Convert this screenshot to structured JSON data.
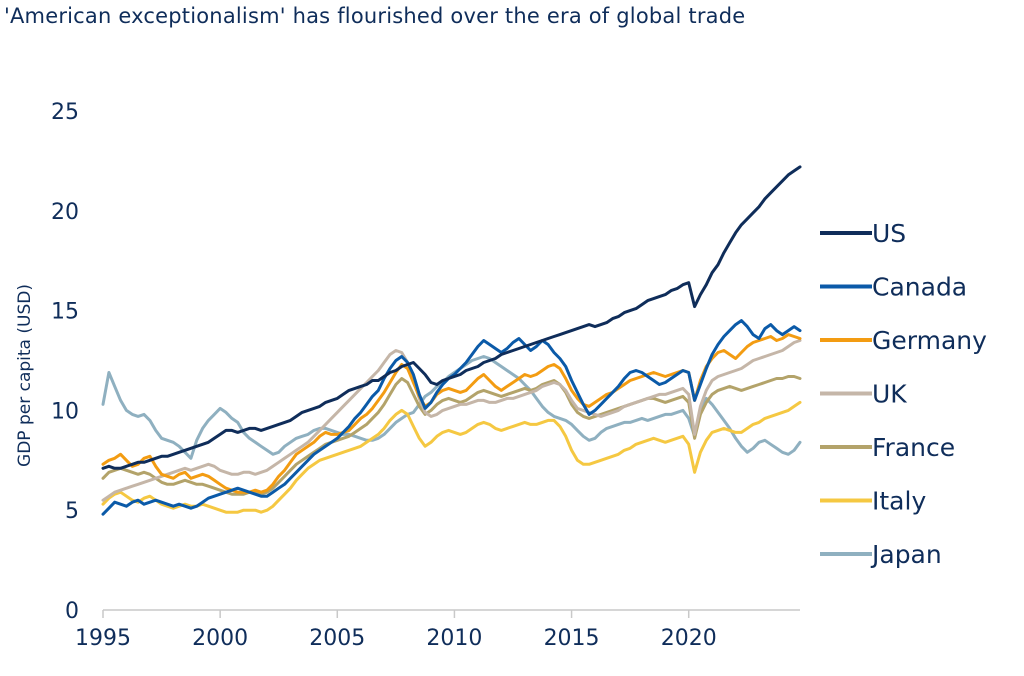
{
  "chart_data": {
    "type": "line",
    "title": "'American exceptionalism' has flourished over the era of global trade",
    "xlabel": "",
    "ylabel": "GDP per capita (USD)",
    "xlim": [
      1995,
      2024.75
    ],
    "ylim": [
      0,
      25
    ],
    "x_ticks": [
      1995,
      2000,
      2005,
      2010,
      2015,
      2020
    ],
    "y_ticks": [
      0,
      5,
      10,
      15,
      20,
      25
    ],
    "legend_position": "right",
    "x": [
      1995.0,
      1995.25,
      1995.5,
      1995.75,
      1996.0,
      1996.25,
      1996.5,
      1996.75,
      1997.0,
      1997.25,
      1997.5,
      1997.75,
      1998.0,
      1998.25,
      1998.5,
      1998.75,
      1999.0,
      1999.25,
      1999.5,
      1999.75,
      2000.0,
      2000.25,
      2000.5,
      2000.75,
      2001.0,
      2001.25,
      2001.5,
      2001.75,
      2002.0,
      2002.25,
      2002.5,
      2002.75,
      2003.0,
      2003.25,
      2003.5,
      2003.75,
      2004.0,
      2004.25,
      2004.5,
      2004.75,
      2005.0,
      2005.25,
      2005.5,
      2005.75,
      2006.0,
      2006.25,
      2006.5,
      2006.75,
      2007.0,
      2007.25,
      2007.5,
      2007.75,
      2008.0,
      2008.25,
      2008.5,
      2008.75,
      2009.0,
      2009.25,
      2009.5,
      2009.75,
      2010.0,
      2010.25,
      2010.5,
      2010.75,
      2011.0,
      2011.25,
      2011.5,
      2011.75,
      2012.0,
      2012.25,
      2012.5,
      2012.75,
      2013.0,
      2013.25,
      2013.5,
      2013.75,
      2014.0,
      2014.25,
      2014.5,
      2014.75,
      2015.0,
      2015.25,
      2015.5,
      2015.75,
      2016.0,
      2016.25,
      2016.5,
      2016.75,
      2017.0,
      2017.25,
      2017.5,
      2017.75,
      2018.0,
      2018.25,
      2018.5,
      2018.75,
      2019.0,
      2019.25,
      2019.5,
      2019.75,
      2020.0,
      2020.25,
      2020.5,
      2020.75,
      2021.0,
      2021.25,
      2021.5,
      2021.75,
      2022.0,
      2022.25,
      2022.5,
      2022.75,
      2023.0,
      2023.25,
      2023.5,
      2023.75,
      2024.0,
      2024.25,
      2024.5,
      2024.75
    ],
    "series": [
      {
        "name": "US",
        "color": "#0f2d5a",
        "values": [
          7.1,
          7.2,
          7.1,
          7.1,
          7.2,
          7.3,
          7.4,
          7.4,
          7.5,
          7.6,
          7.7,
          7.7,
          7.8,
          7.9,
          8.0,
          8.1,
          8.2,
          8.3,
          8.4,
          8.6,
          8.8,
          9.0,
          9.0,
          8.9,
          9.0,
          9.1,
          9.1,
          9.0,
          9.1,
          9.2,
          9.3,
          9.4,
          9.5,
          9.7,
          9.9,
          10.0,
          10.1,
          10.2,
          10.4,
          10.5,
          10.6,
          10.8,
          11.0,
          11.1,
          11.2,
          11.3,
          11.5,
          11.5,
          11.7,
          11.9,
          12.0,
          12.2,
          12.3,
          12.4,
          12.1,
          11.8,
          11.4,
          11.3,
          11.5,
          11.6,
          11.7,
          11.8,
          12.0,
          12.1,
          12.2,
          12.4,
          12.5,
          12.6,
          12.8,
          12.9,
          13.0,
          13.1,
          13.2,
          13.3,
          13.4,
          13.5,
          13.6,
          13.7,
          13.8,
          13.9,
          14.0,
          14.1,
          14.2,
          14.3,
          14.2,
          14.3,
          14.4,
          14.6,
          14.7,
          14.9,
          15.0,
          15.1,
          15.3,
          15.5,
          15.6,
          15.7,
          15.8,
          16.0,
          16.1,
          16.3,
          16.4,
          15.2,
          15.8,
          16.3,
          16.9,
          17.3,
          17.9,
          18.4,
          18.9,
          19.3,
          19.6,
          19.9,
          20.2,
          20.6,
          20.9,
          21.2,
          21.5,
          21.8,
          22.0,
          22.2
        ]
      },
      {
        "name": "Canada",
        "color": "#0b5aa8",
        "values": [
          4.8,
          5.1,
          5.4,
          5.3,
          5.2,
          5.4,
          5.5,
          5.3,
          5.4,
          5.5,
          5.4,
          5.3,
          5.2,
          5.3,
          5.2,
          5.1,
          5.2,
          5.4,
          5.6,
          5.7,
          5.8,
          5.9,
          6.0,
          6.1,
          6.0,
          5.9,
          5.8,
          5.7,
          5.7,
          5.9,
          6.1,
          6.3,
          6.6,
          6.9,
          7.2,
          7.5,
          7.8,
          8.0,
          8.2,
          8.4,
          8.6,
          8.9,
          9.2,
          9.6,
          9.9,
          10.3,
          10.7,
          11.0,
          11.6,
          12.1,
          12.5,
          12.7,
          12.4,
          11.8,
          10.8,
          10.1,
          10.4,
          10.9,
          11.3,
          11.6,
          11.8,
          12.1,
          12.4,
          12.8,
          13.2,
          13.5,
          13.3,
          13.1,
          12.9,
          13.1,
          13.4,
          13.6,
          13.3,
          13.0,
          13.2,
          13.5,
          13.3,
          12.9,
          12.6,
          12.2,
          11.5,
          10.9,
          10.3,
          9.8,
          10.0,
          10.3,
          10.6,
          10.9,
          11.2,
          11.6,
          11.9,
          12.0,
          11.9,
          11.7,
          11.5,
          11.3,
          11.4,
          11.6,
          11.8,
          12.0,
          11.9,
          10.5,
          11.3,
          12.1,
          12.8,
          13.3,
          13.7,
          14.0,
          14.3,
          14.5,
          14.2,
          13.8,
          13.6,
          14.1,
          14.3,
          14.0,
          13.8,
          14.0,
          14.2,
          14.0
        ]
      },
      {
        "name": "Germany",
        "color": "#f39c12",
        "values": [
          7.3,
          7.5,
          7.6,
          7.8,
          7.5,
          7.2,
          7.3,
          7.6,
          7.7,
          7.2,
          6.8,
          6.7,
          6.6,
          6.8,
          6.9,
          6.6,
          6.7,
          6.8,
          6.7,
          6.5,
          6.3,
          6.1,
          6.0,
          5.9,
          5.9,
          5.9,
          6.0,
          5.9,
          6.0,
          6.3,
          6.7,
          7.0,
          7.4,
          7.8,
          8.0,
          8.2,
          8.4,
          8.7,
          8.9,
          8.8,
          8.8,
          8.9,
          9.0,
          9.3,
          9.6,
          9.8,
          10.1,
          10.5,
          10.9,
          11.4,
          11.9,
          12.3,
          12.1,
          11.4,
          10.7,
          10.2,
          10.4,
          10.8,
          11.0,
          11.1,
          11.0,
          10.9,
          11.0,
          11.3,
          11.6,
          11.8,
          11.5,
          11.2,
          11.0,
          11.2,
          11.4,
          11.6,
          11.8,
          11.7,
          11.8,
          12.0,
          12.2,
          12.3,
          12.1,
          11.6,
          11.0,
          10.6,
          10.3,
          10.2,
          10.4,
          10.6,
          10.8,
          10.9,
          11.1,
          11.3,
          11.5,
          11.6,
          11.7,
          11.8,
          11.9,
          11.8,
          11.7,
          11.8,
          11.9,
          12.0,
          11.9,
          10.5,
          11.5,
          12.2,
          12.6,
          12.9,
          13.0,
          12.8,
          12.6,
          12.9,
          13.2,
          13.4,
          13.5,
          13.6,
          13.7,
          13.5,
          13.6,
          13.8,
          13.7,
          13.6
        ]
      },
      {
        "name": "UK",
        "color": "#c5b6a8",
        "values": [
          5.5,
          5.7,
          5.9,
          6.0,
          6.1,
          6.2,
          6.3,
          6.4,
          6.5,
          6.6,
          6.7,
          6.8,
          6.9,
          7.0,
          7.1,
          7.0,
          7.1,
          7.2,
          7.3,
          7.2,
          7.0,
          6.9,
          6.8,
          6.8,
          6.9,
          6.9,
          6.8,
          6.9,
          7.0,
          7.2,
          7.4,
          7.6,
          7.8,
          8.0,
          8.2,
          8.4,
          8.7,
          9.0,
          9.3,
          9.6,
          9.9,
          10.2,
          10.5,
          10.8,
          11.1,
          11.4,
          11.7,
          12.0,
          12.4,
          12.8,
          13.0,
          12.9,
          12.4,
          11.5,
          10.6,
          9.9,
          9.7,
          9.8,
          10.0,
          10.1,
          10.2,
          10.3,
          10.3,
          10.4,
          10.5,
          10.5,
          10.4,
          10.4,
          10.5,
          10.6,
          10.6,
          10.7,
          10.8,
          10.9,
          11.0,
          11.2,
          11.3,
          11.4,
          11.3,
          11.0,
          10.5,
          10.1,
          10.0,
          9.9,
          9.8,
          9.7,
          9.8,
          9.9,
          10.0,
          10.2,
          10.3,
          10.4,
          10.5,
          10.6,
          10.7,
          10.8,
          10.8,
          10.9,
          11.0,
          11.1,
          10.8,
          8.8,
          10.2,
          11.0,
          11.5,
          11.7,
          11.8,
          11.9,
          12.0,
          12.1,
          12.3,
          12.5,
          12.6,
          12.7,
          12.8,
          12.9,
          13.0,
          13.2,
          13.4,
          13.5
        ]
      },
      {
        "name": "France",
        "color": "#b3a36a",
        "values": [
          6.6,
          6.9,
          7.0,
          7.1,
          7.0,
          6.9,
          6.8,
          6.9,
          6.8,
          6.6,
          6.4,
          6.3,
          6.3,
          6.4,
          6.5,
          6.4,
          6.3,
          6.3,
          6.2,
          6.1,
          6.0,
          5.9,
          5.8,
          5.8,
          5.8,
          5.9,
          5.9,
          5.8,
          5.9,
          6.1,
          6.4,
          6.7,
          7.0,
          7.3,
          7.5,
          7.7,
          7.9,
          8.1,
          8.3,
          8.4,
          8.5,
          8.6,
          8.7,
          8.9,
          9.1,
          9.3,
          9.6,
          9.9,
          10.3,
          10.8,
          11.3,
          11.6,
          11.4,
          10.8,
          10.2,
          9.8,
          10.0,
          10.3,
          10.5,
          10.6,
          10.5,
          10.4,
          10.5,
          10.7,
          10.9,
          11.0,
          10.9,
          10.8,
          10.7,
          10.8,
          10.9,
          11.0,
          11.1,
          11.0,
          11.1,
          11.3,
          11.4,
          11.5,
          11.3,
          10.9,
          10.3,
          9.9,
          9.7,
          9.6,
          9.7,
          9.8,
          9.9,
          10.0,
          10.1,
          10.2,
          10.3,
          10.4,
          10.5,
          10.6,
          10.6,
          10.5,
          10.4,
          10.5,
          10.6,
          10.7,
          10.4,
          8.6,
          9.8,
          10.4,
          10.8,
          11.0,
          11.1,
          11.2,
          11.1,
          11.0,
          11.1,
          11.2,
          11.3,
          11.4,
          11.5,
          11.6,
          11.6,
          11.7,
          11.7,
          11.6
        ]
      },
      {
        "name": "Italy",
        "color": "#f5c842",
        "values": [
          5.3,
          5.6,
          5.8,
          5.9,
          5.7,
          5.5,
          5.4,
          5.6,
          5.7,
          5.5,
          5.3,
          5.2,
          5.1,
          5.2,
          5.3,
          5.2,
          5.2,
          5.3,
          5.2,
          5.1,
          5.0,
          4.9,
          4.9,
          4.9,
          5.0,
          5.0,
          5.0,
          4.9,
          5.0,
          5.2,
          5.5,
          5.8,
          6.1,
          6.5,
          6.8,
          7.1,
          7.3,
          7.5,
          7.6,
          7.7,
          7.8,
          7.9,
          8.0,
          8.1,
          8.2,
          8.4,
          8.6,
          8.8,
          9.1,
          9.5,
          9.8,
          10.0,
          9.8,
          9.2,
          8.6,
          8.2,
          8.4,
          8.7,
          8.9,
          9.0,
          8.9,
          8.8,
          8.9,
          9.1,
          9.3,
          9.4,
          9.3,
          9.1,
          9.0,
          9.1,
          9.2,
          9.3,
          9.4,
          9.3,
          9.3,
          9.4,
          9.5,
          9.5,
          9.2,
          8.7,
          8.0,
          7.5,
          7.3,
          7.3,
          7.4,
          7.5,
          7.6,
          7.7,
          7.8,
          8.0,
          8.1,
          8.3,
          8.4,
          8.5,
          8.6,
          8.5,
          8.4,
          8.5,
          8.6,
          8.7,
          8.3,
          6.9,
          7.9,
          8.5,
          8.9,
          9.0,
          9.1,
          9.0,
          8.9,
          8.9,
          9.1,
          9.3,
          9.4,
          9.6,
          9.7,
          9.8,
          9.9,
          10.0,
          10.2,
          10.4
        ]
      },
      {
        "name": "Japan",
        "color": "#8fb0c0",
        "values": [
          10.3,
          11.9,
          11.2,
          10.5,
          10.0,
          9.8,
          9.7,
          9.8,
          9.5,
          9.0,
          8.6,
          8.5,
          8.4,
          8.2,
          7.9,
          7.6,
          8.5,
          9.1,
          9.5,
          9.8,
          10.1,
          9.9,
          9.6,
          9.4,
          8.9,
          8.6,
          8.4,
          8.2,
          8.0,
          7.8,
          7.9,
          8.2,
          8.4,
          8.6,
          8.7,
          8.8,
          9.0,
          9.1,
          9.1,
          9.0,
          8.9,
          8.8,
          8.8,
          8.7,
          8.6,
          8.5,
          8.5,
          8.6,
          8.8,
          9.1,
          9.4,
          9.6,
          9.8,
          9.9,
          10.3,
          10.7,
          10.9,
          11.2,
          11.4,
          11.7,
          11.9,
          12.1,
          12.3,
          12.5,
          12.6,
          12.7,
          12.6,
          12.4,
          12.2,
          12.0,
          11.8,
          11.6,
          11.3,
          11.0,
          10.6,
          10.2,
          9.9,
          9.7,
          9.6,
          9.5,
          9.3,
          9.0,
          8.7,
          8.5,
          8.6,
          8.9,
          9.1,
          9.2,
          9.3,
          9.4,
          9.4,
          9.5,
          9.6,
          9.5,
          9.6,
          9.7,
          9.8,
          9.8,
          9.9,
          10.0,
          9.6,
          8.7,
          9.9,
          10.6,
          10.3,
          9.9,
          9.5,
          9.1,
          8.6,
          8.2,
          7.9,
          8.1,
          8.4,
          8.5,
          8.3,
          8.1,
          7.9,
          7.8,
          8.0,
          8.4
        ]
      }
    ]
  }
}
